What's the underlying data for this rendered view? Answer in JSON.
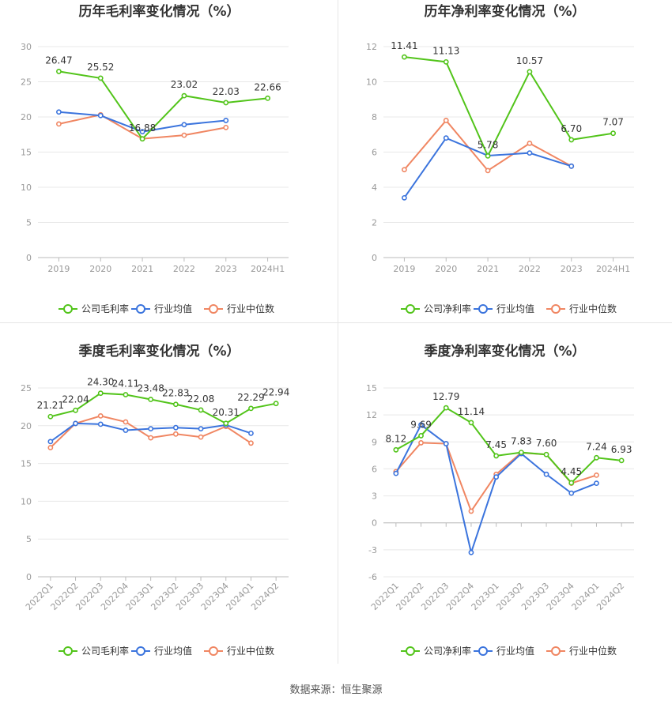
{
  "source_label": "数据来源：恒生聚源",
  "colors": {
    "company": "#52c41a",
    "avg": "#3b74dd",
    "median": "#f08662",
    "grid": "#e8e8e8",
    "axis": "#999999",
    "title": "#333333"
  },
  "chart_data": [
    {
      "id": "annual-gross",
      "type": "line",
      "title": "历年毛利率变化情况（%）",
      "categories": [
        "2019",
        "2020",
        "2021",
        "2022",
        "2023",
        "2024H1"
      ],
      "ylim": [
        0,
        30
      ],
      "yticks": [
        0,
        5,
        10,
        15,
        20,
        25,
        30
      ],
      "xlabel": "",
      "ylabel": "",
      "legend": [
        "公司毛利率",
        "行业均值",
        "行业中位数"
      ],
      "legend_position": "bottom",
      "series": [
        {
          "name": "公司毛利率",
          "values": [
            26.47,
            25.52,
            16.88,
            23.02,
            22.03,
            22.66
          ],
          "labels": [
            "26.47",
            "25.52",
            "16.88",
            "23.02",
            "22.03",
            "22.66"
          ]
        },
        {
          "name": "行业均值",
          "values": [
            20.7,
            20.2,
            17.9,
            18.9,
            19.5,
            null
          ]
        },
        {
          "name": "行业中位数",
          "values": [
            19.0,
            20.3,
            16.9,
            17.4,
            18.5,
            null
          ]
        }
      ]
    },
    {
      "id": "annual-net",
      "type": "line",
      "title": "历年净利率变化情况（%）",
      "categories": [
        "2019",
        "2020",
        "2021",
        "2022",
        "2023",
        "2024H1"
      ],
      "ylim": [
        0,
        12
      ],
      "yticks": [
        0,
        2,
        4,
        6,
        8,
        10,
        12
      ],
      "xlabel": "",
      "ylabel": "",
      "legend": [
        "公司净利率",
        "行业均值",
        "行业中位数"
      ],
      "legend_position": "bottom",
      "series": [
        {
          "name": "公司净利率",
          "values": [
            11.41,
            11.13,
            5.78,
            10.57,
            6.7,
            7.07
          ],
          "labels": [
            "11.41",
            "11.13",
            "5.78",
            "10.57",
            "6.70",
            "7.07"
          ]
        },
        {
          "name": "行业均值",
          "values": [
            3.4,
            6.8,
            5.8,
            5.95,
            5.2,
            null
          ]
        },
        {
          "name": "行业中位数",
          "values": [
            5.0,
            7.8,
            4.95,
            6.5,
            5.2,
            null
          ]
        }
      ]
    },
    {
      "id": "quarterly-gross",
      "type": "line",
      "title": "季度毛利率变化情况（%）",
      "categories": [
        "2022Q1",
        "2022Q2",
        "2022Q3",
        "2022Q4",
        "2023Q1",
        "2023Q2",
        "2023Q3",
        "2023Q4",
        "2024Q1",
        "2024Q2"
      ],
      "ylim": [
        0,
        25
      ],
      "yticks": [
        0,
        5,
        10,
        15,
        20,
        25
      ],
      "xlabel": "",
      "ylabel": "",
      "legend": [
        "公司毛利率",
        "行业均值",
        "行业中位数"
      ],
      "legend_position": "bottom",
      "series": [
        {
          "name": "公司毛利率",
          "values": [
            21.21,
            22.04,
            24.3,
            24.11,
            23.48,
            22.83,
            22.08,
            20.31,
            22.29,
            22.94
          ],
          "labels": [
            "21.21",
            "22.04",
            "24.30",
            "24.11",
            "23.48",
            "22.83",
            "22.08",
            "20.31",
            "22.29",
            "22.94"
          ]
        },
        {
          "name": "行业均值",
          "values": [
            17.9,
            20.3,
            20.2,
            19.4,
            19.6,
            19.75,
            19.6,
            20.1,
            19.0,
            null
          ]
        },
        {
          "name": "行业中位数",
          "values": [
            17.1,
            20.3,
            21.3,
            20.5,
            18.4,
            18.9,
            18.5,
            19.9,
            17.7,
            null
          ]
        }
      ]
    },
    {
      "id": "quarterly-net",
      "type": "line",
      "title": "季度净利率变化情况（%）",
      "categories": [
        "2022Q1",
        "2022Q2",
        "2022Q3",
        "2022Q4",
        "2023Q1",
        "2023Q2",
        "2023Q3",
        "2023Q4",
        "2024Q1",
        "2024Q2"
      ],
      "ylim": [
        -6,
        15
      ],
      "yticks": [
        -6,
        -3,
        0,
        3,
        6,
        9,
        12,
        15
      ],
      "xlabel": "",
      "ylabel": "",
      "legend": [
        "公司净利率",
        "行业均值",
        "行业中位数"
      ],
      "legend_position": "bottom",
      "series": [
        {
          "name": "公司净利率",
          "values": [
            8.12,
            9.69,
            12.79,
            11.14,
            7.45,
            7.83,
            7.6,
            4.45,
            7.24,
            6.93
          ],
          "labels": [
            "8.12",
            "9.69",
            "12.79",
            "11.14",
            "7.45",
            "7.83",
            "7.60",
            "4.45",
            "7.24",
            "6.93"
          ]
        },
        {
          "name": "行业均值",
          "values": [
            5.5,
            10.9,
            8.8,
            -3.3,
            5.1,
            7.7,
            5.4,
            3.3,
            4.4,
            null
          ]
        },
        {
          "name": "行业中位数",
          "values": [
            5.7,
            8.9,
            8.8,
            1.3,
            5.4,
            7.8,
            7.6,
            4.4,
            5.3,
            null
          ]
        }
      ]
    }
  ]
}
